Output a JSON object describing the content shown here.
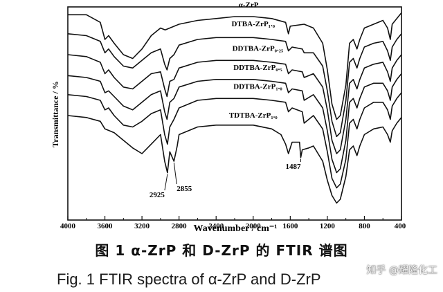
{
  "chart_data": {
    "type": "line",
    "xlabel": "Wavenumber / cm⁻¹",
    "ylabel": "Transmittance / %",
    "xlim": [
      4000,
      400
    ],
    "x_reversed": true,
    "x_ticks": [
      "4000",
      "3600",
      "3200",
      "2800",
      "2400",
      "2000",
      "1600",
      "1200",
      "800",
      "400"
    ],
    "grid": false,
    "series": [
      {
        "name": "α-ZrP",
        "points": [
          [
            4000,
            97
          ],
          [
            3800,
            97
          ],
          [
            3650,
            93
          ],
          [
            3600,
            84
          ],
          [
            3560,
            86
          ],
          [
            3500,
            82
          ],
          [
            3400,
            76
          ],
          [
            3300,
            74
          ],
          [
            3200,
            79
          ],
          [
            3100,
            86
          ],
          [
            3000,
            90
          ],
          [
            2950,
            89
          ],
          [
            2900,
            90
          ],
          [
            2800,
            92
          ],
          [
            2600,
            94
          ],
          [
            2400,
            95
          ],
          [
            2200,
            96
          ],
          [
            2000,
            96
          ],
          [
            1800,
            95
          ],
          [
            1650,
            93
          ],
          [
            1620,
            87
          ],
          [
            1600,
            91
          ],
          [
            1450,
            92
          ],
          [
            1350,
            90
          ],
          [
            1300,
            86
          ],
          [
            1250,
            82
          ],
          [
            1200,
            68
          ],
          [
            1150,
            50
          ],
          [
            1100,
            42
          ],
          [
            1060,
            44
          ],
          [
            1000,
            60
          ],
          [
            960,
            82
          ],
          [
            920,
            84
          ],
          [
            880,
            79
          ],
          [
            850,
            84
          ],
          [
            800,
            90
          ],
          [
            700,
            92
          ],
          [
            600,
            94
          ],
          [
            550,
            90
          ],
          [
            520,
            84
          ],
          [
            500,
            92
          ],
          [
            450,
            95
          ],
          [
            400,
            98
          ]
        ]
      },
      {
        "name": "DTBA-ZrP₁.₀",
        "points": [
          [
            4000,
            87
          ],
          [
            3800,
            86
          ],
          [
            3650,
            83
          ],
          [
            3600,
            77
          ],
          [
            3560,
            79
          ],
          [
            3500,
            75
          ],
          [
            3400,
            70
          ],
          [
            3300,
            69
          ],
          [
            3200,
            73
          ],
          [
            3100,
            77
          ],
          [
            3000,
            79
          ],
          [
            2955,
            71
          ],
          [
            2930,
            68
          ],
          [
            2900,
            74
          ],
          [
            2855,
            76
          ],
          [
            2800,
            81
          ],
          [
            2600,
            84
          ],
          [
            2400,
            85
          ],
          [
            2200,
            85
          ],
          [
            2000,
            85
          ],
          [
            1800,
            84
          ],
          [
            1650,
            83
          ],
          [
            1620,
            78
          ],
          [
            1580,
            80
          ],
          [
            1470,
            79
          ],
          [
            1450,
            77
          ],
          [
            1350,
            77
          ],
          [
            1250,
            70
          ],
          [
            1200,
            57
          ],
          [
            1150,
            41
          ],
          [
            1100,
            33
          ],
          [
            1060,
            35
          ],
          [
            1000,
            52
          ],
          [
            960,
            72
          ],
          [
            920,
            74
          ],
          [
            880,
            69
          ],
          [
            850,
            74
          ],
          [
            800,
            80
          ],
          [
            700,
            82
          ],
          [
            600,
            83
          ],
          [
            550,
            78
          ],
          [
            520,
            73
          ],
          [
            500,
            80
          ],
          [
            450,
            84
          ],
          [
            400,
            87
          ]
        ]
      },
      {
        "name": "DDTBA-ZrP₀.₂₅",
        "points": [
          [
            4000,
            76
          ],
          [
            3800,
            75
          ],
          [
            3650,
            72
          ],
          [
            3600,
            66
          ],
          [
            3560,
            68
          ],
          [
            3500,
            64
          ],
          [
            3400,
            59
          ],
          [
            3300,
            58
          ],
          [
            3200,
            62
          ],
          [
            3100,
            66
          ],
          [
            3000,
            67
          ],
          [
            2955,
            58
          ],
          [
            2930,
            54
          ],
          [
            2900,
            62
          ],
          [
            2855,
            63
          ],
          [
            2800,
            69
          ],
          [
            2600,
            72
          ],
          [
            2400,
            73
          ],
          [
            2200,
            73
          ],
          [
            2000,
            73
          ],
          [
            1800,
            72
          ],
          [
            1650,
            71
          ],
          [
            1620,
            66
          ],
          [
            1580,
            68
          ],
          [
            1470,
            67
          ],
          [
            1450,
            64
          ],
          [
            1350,
            66
          ],
          [
            1250,
            59
          ],
          [
            1200,
            47
          ],
          [
            1150,
            31
          ],
          [
            1100,
            24
          ],
          [
            1060,
            26
          ],
          [
            1000,
            42
          ],
          [
            960,
            61
          ],
          [
            920,
            63
          ],
          [
            880,
            58
          ],
          [
            850,
            63
          ],
          [
            800,
            69
          ],
          [
            700,
            71
          ],
          [
            600,
            72
          ],
          [
            550,
            67
          ],
          [
            520,
            62
          ],
          [
            500,
            69
          ],
          [
            450,
            73
          ],
          [
            400,
            76
          ]
        ]
      },
      {
        "name": "DDTBA-ZrP₀.₅",
        "points": [
          [
            4000,
            65
          ],
          [
            3800,
            64
          ],
          [
            3650,
            62
          ],
          [
            3600,
            56
          ],
          [
            3560,
            57
          ],
          [
            3500,
            54
          ],
          [
            3400,
            49
          ],
          [
            3300,
            47
          ],
          [
            3200,
            51
          ],
          [
            3100,
            55
          ],
          [
            3000,
            57
          ],
          [
            2955,
            46
          ],
          [
            2930,
            42
          ],
          [
            2900,
            51
          ],
          [
            2855,
            53
          ],
          [
            2800,
            59
          ],
          [
            2600,
            62
          ],
          [
            2400,
            63
          ],
          [
            2200,
            63
          ],
          [
            2000,
            63
          ],
          [
            1800,
            62
          ],
          [
            1650,
            61
          ],
          [
            1620,
            56
          ],
          [
            1580,
            58
          ],
          [
            1470,
            57
          ],
          [
            1450,
            52
          ],
          [
            1350,
            55
          ],
          [
            1250,
            48
          ],
          [
            1200,
            36
          ],
          [
            1150,
            21
          ],
          [
            1100,
            14
          ],
          [
            1060,
            16
          ],
          [
            1000,
            31
          ],
          [
            960,
            51
          ],
          [
            920,
            53
          ],
          [
            880,
            48
          ],
          [
            850,
            53
          ],
          [
            800,
            59
          ],
          [
            700,
            61
          ],
          [
            600,
            61
          ],
          [
            550,
            57
          ],
          [
            520,
            52
          ],
          [
            500,
            59
          ],
          [
            450,
            63
          ],
          [
            400,
            66
          ]
        ]
      },
      {
        "name": "DDTBA-ZrP₁.₀",
        "points": [
          [
            4000,
            55
          ],
          [
            3800,
            54
          ],
          [
            3650,
            52
          ],
          [
            3600,
            47
          ],
          [
            3560,
            48
          ],
          [
            3500,
            44
          ],
          [
            3400,
            39
          ],
          [
            3300,
            38
          ],
          [
            3200,
            41
          ],
          [
            3100,
            45
          ],
          [
            3000,
            47
          ],
          [
            2955,
            34
          ],
          [
            2925,
            29
          ],
          [
            2900,
            38
          ],
          [
            2855,
            42
          ],
          [
            2800,
            48
          ],
          [
            2600,
            52
          ],
          [
            2400,
            53
          ],
          [
            2200,
            53
          ],
          [
            2000,
            53
          ],
          [
            1800,
            52
          ],
          [
            1650,
            51
          ],
          [
            1620,
            46
          ],
          [
            1580,
            48
          ],
          [
            1470,
            46
          ],
          [
            1450,
            40
          ],
          [
            1350,
            44
          ],
          [
            1250,
            37
          ],
          [
            1200,
            25
          ],
          [
            1150,
            11
          ],
          [
            1100,
            6
          ],
          [
            1060,
            8
          ],
          [
            1000,
            21
          ],
          [
            960,
            40
          ],
          [
            920,
            42
          ],
          [
            880,
            37
          ],
          [
            850,
            42
          ],
          [
            800,
            48
          ],
          [
            700,
            51
          ],
          [
            600,
            51
          ],
          [
            550,
            47
          ],
          [
            520,
            42
          ],
          [
            500,
            49
          ],
          [
            450,
            53
          ],
          [
            400,
            56
          ]
        ]
      },
      {
        "name": "TDTBA-ZrP₁.₀",
        "points": [
          [
            4000,
            44
          ],
          [
            3800,
            43
          ],
          [
            3650,
            41
          ],
          [
            3600,
            37
          ],
          [
            3500,
            35
          ],
          [
            3400,
            31
          ],
          [
            3300,
            27
          ],
          [
            3200,
            24
          ],
          [
            3100,
            29
          ],
          [
            3000,
            34
          ],
          [
            2955,
            20
          ],
          [
            2925,
            14
          ],
          [
            2900,
            25
          ],
          [
            2855,
            20
          ],
          [
            2820,
            28
          ],
          [
            2800,
            34
          ],
          [
            2600,
            38
          ],
          [
            2400,
            39
          ],
          [
            2200,
            39
          ],
          [
            2000,
            39
          ],
          [
            1800,
            37
          ],
          [
            1700,
            34
          ],
          [
            1650,
            29
          ],
          [
            1620,
            24
          ],
          [
            1580,
            30
          ],
          [
            1500,
            30
          ],
          [
            1487,
            22
          ],
          [
            1470,
            26
          ],
          [
            1400,
            27
          ],
          [
            1350,
            28
          ],
          [
            1250,
            20
          ],
          [
            1200,
            10
          ],
          [
            1150,
            2
          ],
          [
            1100,
            -2
          ],
          [
            1060,
            0
          ],
          [
            1000,
            12
          ],
          [
            960,
            26
          ],
          [
            920,
            28
          ],
          [
            880,
            23
          ],
          [
            850,
            28
          ],
          [
            800,
            34
          ],
          [
            700,
            37
          ],
          [
            600,
            38
          ],
          [
            550,
            34
          ],
          [
            520,
            30
          ],
          [
            500,
            36
          ],
          [
            450,
            40
          ],
          [
            400,
            43
          ]
        ]
      }
    ],
    "annotations": [
      "2925",
      "2855",
      "1487"
    ]
  },
  "caption_cn": "图 1   α-ZrP 和 D-ZrP 的 FTIR 谱图",
  "caption_en": "Fig. 1    FTIR spectra of α-ZrP and D-ZrP",
  "watermark": "知乎 @耀隆化工"
}
